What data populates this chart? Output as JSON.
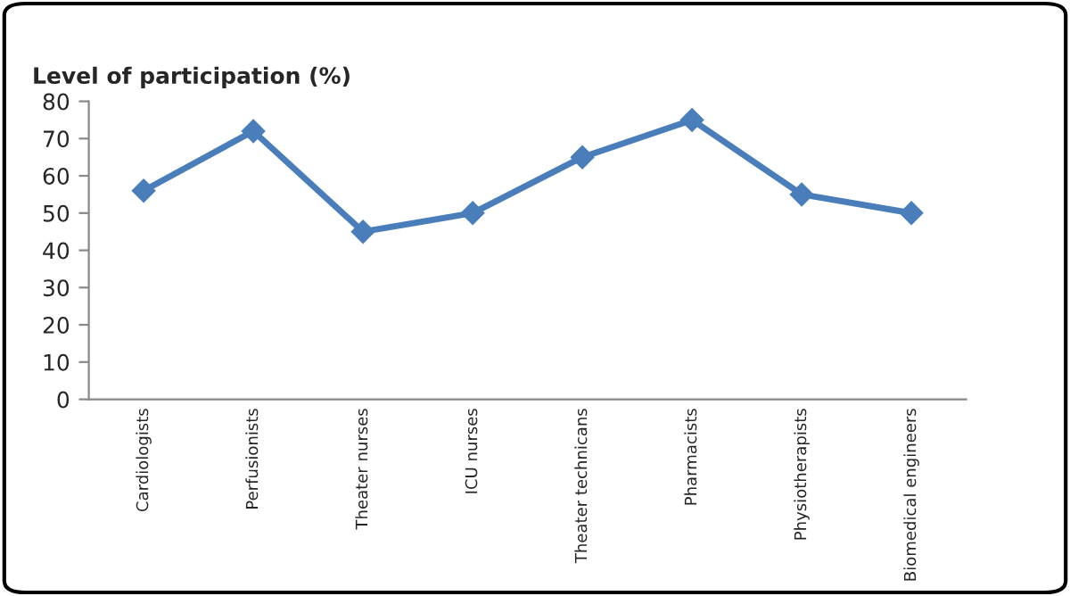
{
  "chart_data": {
    "type": "line",
    "title": "Level of participation (%)",
    "categories": [
      "Cardiologists",
      "Perfusionists",
      "Theater nurses",
      "ICU nurses",
      "Theater technicans",
      "Pharmacists",
      "Physiotherapists",
      "Biomedical engineers"
    ],
    "series": [
      {
        "color": "#4a7ebb",
        "values": [
          56,
          72,
          45,
          50,
          65,
          75,
          55,
          50
        ]
      }
    ],
    "ylim": [
      0,
      80
    ],
    "yticks": [
      0,
      10,
      20,
      30,
      40,
      50,
      60,
      70,
      80
    ],
    "marker": "diamond",
    "line_style": "solid",
    "grid": false,
    "legend": false
  }
}
